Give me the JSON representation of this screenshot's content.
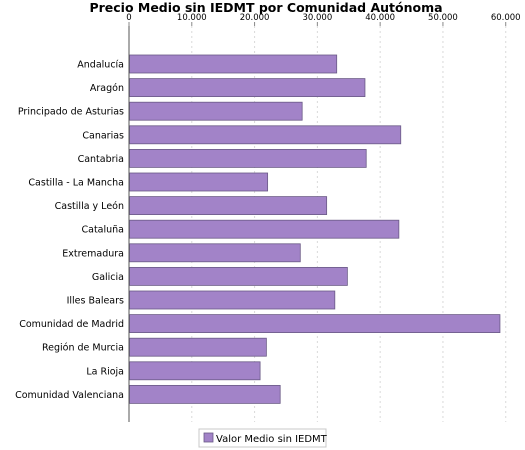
{
  "chart_data": {
    "type": "bar",
    "orientation": "horizontal",
    "title": "Precio Medio sin IEDMT por Comunidad Autónoma",
    "xlabel": "",
    "ylabel": "",
    "xlim": [
      0,
      61000
    ],
    "x_ticks": [
      "0",
      "10.000",
      "20.000",
      "30.000",
      "40.000",
      "50.000",
      "60.000"
    ],
    "x_axis_position": "top",
    "grid": "vertical dashed",
    "legend_position": "bottom-center",
    "bar_color": "#a283c8",
    "bar_border": "#6a5a86",
    "categories": [
      "Andalucía",
      "Aragón",
      "Principado de Asturias",
      "Canarias",
      "Cantabria",
      "Castilla - La Mancha",
      "Castilla y León",
      "Cataluña",
      "Extremadura",
      "Galicia",
      "Illes Balears",
      "Comunidad de Madrid",
      "Región de Murcia",
      "La Rioja",
      "Comunidad Valenciana"
    ],
    "series": [
      {
        "name": "Valor Medio sin IEDMT",
        "values": [
          33000,
          37500,
          27500,
          43200,
          37700,
          22000,
          31400,
          42900,
          27200,
          34700,
          32700,
          59000,
          21800,
          20800,
          24000
        ]
      }
    ]
  }
}
